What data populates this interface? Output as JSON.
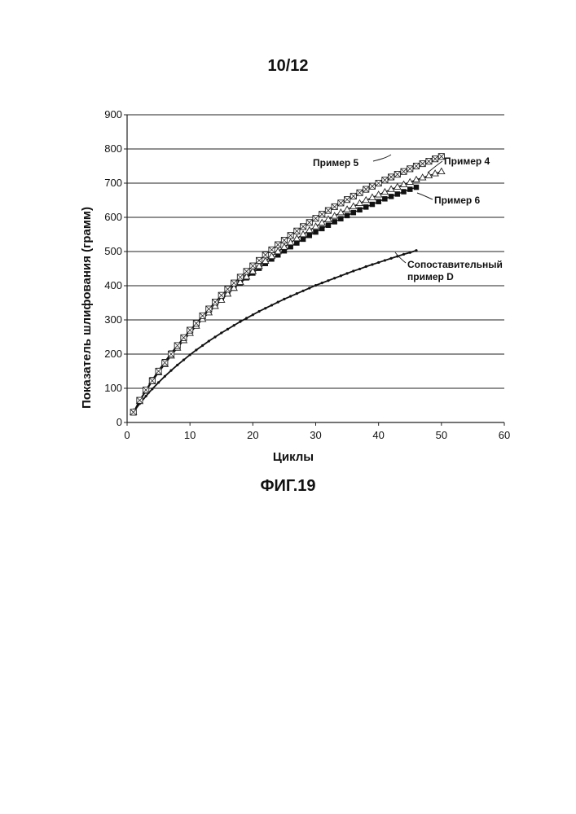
{
  "page": {
    "page_number": "10/12",
    "figure_label": "ФИГ.19"
  },
  "chart_data": {
    "type": "line",
    "xlabel": "Циклы",
    "ylabel": "Показатель шлифования (грамм)",
    "xlim": [
      0,
      60
    ],
    "ylim": [
      0,
      900
    ],
    "x_ticks": [
      "0",
      "10",
      "20",
      "30",
      "40",
      "50",
      "60"
    ],
    "y_ticks": [
      "0",
      "100",
      "200",
      "300",
      "400",
      "500",
      "600",
      "700",
      "800",
      "900"
    ],
    "grid": "horizontal",
    "series": [
      {
        "name": "Пример 5",
        "marker": "crossed-square",
        "values_note": "",
        "x": [
          1,
          2,
          3,
          4,
          5,
          6,
          7,
          8,
          9,
          10,
          11,
          12,
          13,
          14,
          15,
          16,
          17,
          18,
          19,
          20,
          21,
          22,
          23,
          24,
          25,
          26,
          27,
          28,
          29,
          30,
          31,
          32,
          33,
          34,
          35,
          36,
          37,
          38,
          39,
          40,
          41,
          42,
          43,
          44,
          45,
          46,
          47,
          48,
          49,
          50
        ],
        "y": [
          30,
          65,
          95,
          122,
          150,
          175,
          200,
          225,
          248,
          270,
          290,
          312,
          332,
          352,
          372,
          390,
          408,
          425,
          442,
          458,
          474,
          490,
          505,
          520,
          533,
          547,
          560,
          573,
          585,
          597,
          609,
          620,
          631,
          642,
          652,
          662,
          672,
          682,
          691,
          700,
          709,
          718,
          726,
          734,
          742,
          750,
          757,
          764,
          771,
          778
        ]
      },
      {
        "name": "Пример 4",
        "marker": "open-triangle",
        "x": [
          1,
          2,
          3,
          4,
          5,
          6,
          7,
          8,
          9,
          10,
          11,
          12,
          13,
          14,
          15,
          16,
          17,
          18,
          19,
          20,
          21,
          22,
          23,
          24,
          25,
          26,
          27,
          28,
          29,
          30,
          31,
          32,
          33,
          34,
          35,
          36,
          37,
          38,
          39,
          40,
          41,
          42,
          43,
          44,
          45,
          46,
          47,
          48,
          49,
          50
        ],
        "y": [
          30,
          62,
          92,
          120,
          146,
          170,
          195,
          218,
          240,
          261,
          282,
          302,
          321,
          340,
          358,
          376,
          393,
          410,
          426,
          442,
          457,
          472,
          486,
          500,
          513,
          526,
          538,
          550,
          562,
          573,
          584,
          594,
          604,
          614,
          623,
          632,
          641,
          650,
          658,
          666,
          674,
          682,
          689,
          696,
          703,
          710,
          716,
          722,
          728,
          734
        ]
      },
      {
        "name": "Пример 6",
        "marker": "filled-square",
        "x": [
          1,
          2,
          3,
          4,
          5,
          6,
          7,
          8,
          9,
          10,
          11,
          12,
          13,
          14,
          15,
          16,
          17,
          18,
          19,
          20,
          21,
          22,
          23,
          24,
          25,
          26,
          27,
          28,
          29,
          30,
          31,
          32,
          33,
          34,
          35,
          36,
          37,
          38,
          39,
          40,
          41,
          42,
          43,
          44,
          45,
          46
        ],
        "y": [
          30,
          63,
          95,
          125,
          152,
          178,
          203,
          226,
          248,
          269,
          289,
          308,
          327,
          344,
          361,
          377,
          393,
          408,
          423,
          437,
          451,
          465,
          478,
          490,
          502,
          514,
          525,
          536,
          547,
          557,
          567,
          577,
          587,
          596,
          605,
          614,
          622,
          630,
          638,
          646,
          654,
          661,
          668,
          675,
          682,
          688
        ]
      },
      {
        "name": "Сопоставительный пример D",
        "marker": "small-dot",
        "x": [
          1,
          2,
          3,
          4,
          5,
          6,
          7,
          8,
          9,
          10,
          11,
          12,
          13,
          14,
          15,
          16,
          17,
          18,
          19,
          20,
          21,
          22,
          23,
          24,
          25,
          26,
          27,
          28,
          29,
          30,
          31,
          32,
          33,
          34,
          35,
          36,
          37,
          38,
          39,
          40,
          41,
          42,
          43,
          44,
          45,
          46
        ],
        "y": [
          30,
          55,
          77,
          98,
          117,
          135,
          152,
          168,
          183,
          198,
          212,
          225,
          238,
          250,
          262,
          273,
          284,
          295,
          305,
          315,
          325,
          334,
          343,
          352,
          361,
          369,
          377,
          385,
          393,
          401,
          408,
          415,
          422,
          429,
          436,
          443,
          449,
          456,
          462,
          468,
          474,
          480,
          486,
          492,
          497,
          503
        ]
      }
    ],
    "labels": [
      {
        "text": "Пример 5"
      },
      {
        "text": "Пример 4"
      },
      {
        "text": "Пример 6"
      },
      {
        "text": "Сопоставительный"
      },
      {
        "text": "пример D"
      }
    ]
  }
}
